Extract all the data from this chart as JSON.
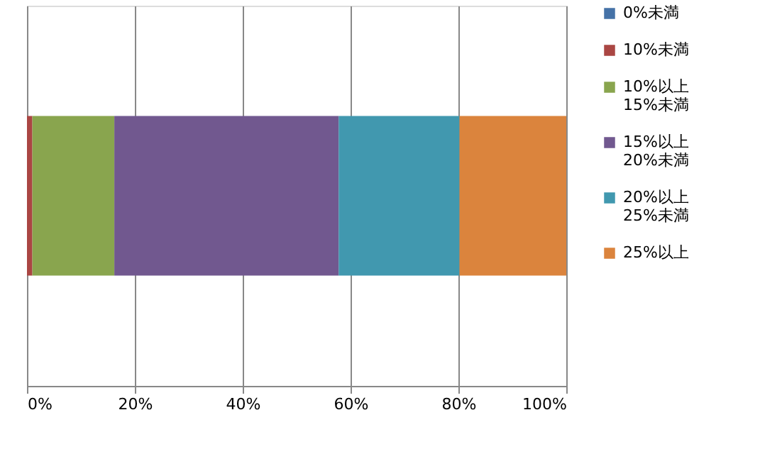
{
  "chart_data": {
    "type": "bar",
    "orientation": "horizontal",
    "stacked": true,
    "categories": [
      null
    ],
    "series": [
      {
        "name": "0%未満",
        "color": "#4572a7",
        "values": [
          0
        ]
      },
      {
        "name": "10%未満",
        "color": "#aa4643",
        "values": [
          1.0
        ]
      },
      {
        "name": "10%以上\n15%未満",
        "color": "#89a54e",
        "values": [
          15.2
        ]
      },
      {
        "name": "15%以上\n20%未満",
        "color": "#71588f",
        "values": [
          41.6
        ]
      },
      {
        "name": "20%以上\n25%未満",
        "color": "#4198af",
        "values": [
          22.4
        ]
      },
      {
        "name": "25%以上",
        "color": "#db843d",
        "values": [
          19.8
        ]
      }
    ],
    "xlim": [
      0,
      100
    ],
    "xticks": [
      {
        "value": 0,
        "label": "0%"
      },
      {
        "value": 20,
        "label": "20%"
      },
      {
        "value": 40,
        "label": "40%"
      },
      {
        "value": 60,
        "label": "60%"
      },
      {
        "value": 80,
        "label": "80%"
      },
      {
        "value": 100,
        "label": "100%"
      }
    ],
    "grid": "x",
    "legend": "right",
    "tick_labels": "x"
  }
}
